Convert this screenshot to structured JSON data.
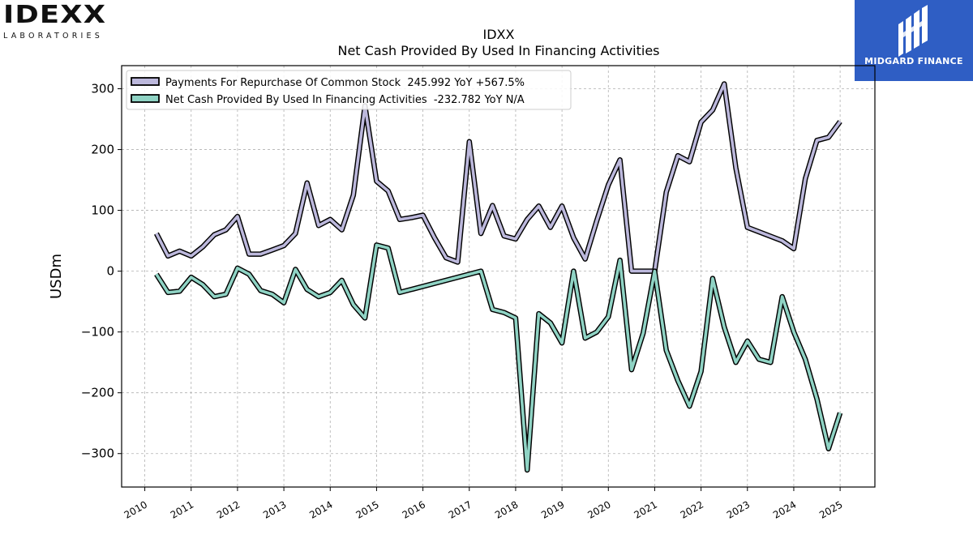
{
  "logos": {
    "left_mark": "IDEXX",
    "left_sub": "LABORATORIES",
    "right_brand": "MIDGARD FINANCE",
    "right_bg": "#2f5ec4"
  },
  "chart_data": {
    "type": "line",
    "title": "IDXX",
    "subtitle": "Net Cash Provided By Used In Financing Activities",
    "xlabel": "",
    "ylabel": "USDm",
    "xlim": [
      2009.5,
      2025.75
    ],
    "ylim": [
      -355,
      338
    ],
    "x_ticks": [
      "2010",
      "2011",
      "2012",
      "2013",
      "2014",
      "2015",
      "2016",
      "2017",
      "2018",
      "2019",
      "2020",
      "2021",
      "2022",
      "2023",
      "2024",
      "2025"
    ],
    "y_ticks": [
      "300",
      "200",
      "100",
      "0",
      "−100",
      "−200",
      "−300"
    ],
    "y_tick_values": [
      300,
      200,
      100,
      0,
      -100,
      -200,
      -300
    ],
    "grid": true,
    "legend_position": "top-left",
    "series": [
      {
        "name": "Payments For Repurchase Of Common Stock  245.992 YoY +567.5%",
        "color": "#bcb8dc",
        "points": [
          [
            2010.25,
            62
          ],
          [
            2010.5,
            25
          ],
          [
            2010.75,
            33
          ],
          [
            2011.0,
            25
          ],
          [
            2011.25,
            40
          ],
          [
            2011.5,
            60
          ],
          [
            2011.75,
            68
          ],
          [
            2012.0,
            90
          ],
          [
            2012.25,
            28
          ],
          [
            2012.5,
            28
          ],
          [
            2012.75,
            35
          ],
          [
            2013.0,
            42
          ],
          [
            2013.25,
            62
          ],
          [
            2013.5,
            145
          ],
          [
            2013.75,
            75
          ],
          [
            2014.0,
            85
          ],
          [
            2014.25,
            68
          ],
          [
            2014.5,
            125
          ],
          [
            2014.75,
            272
          ],
          [
            2015.0,
            148
          ],
          [
            2015.25,
            132
          ],
          [
            2015.5,
            85
          ],
          [
            2015.75,
            88
          ],
          [
            2016.0,
            92
          ],
          [
            2016.25,
            55
          ],
          [
            2016.5,
            22
          ],
          [
            2016.75,
            15
          ],
          [
            2017.0,
            213
          ],
          [
            2017.25,
            62
          ],
          [
            2017.5,
            108
          ],
          [
            2017.75,
            58
          ],
          [
            2018.0,
            53
          ],
          [
            2018.25,
            85
          ],
          [
            2018.5,
            107
          ],
          [
            2018.75,
            72
          ],
          [
            2019.0,
            107
          ],
          [
            2019.25,
            55
          ],
          [
            2019.5,
            20
          ],
          [
            2019.75,
            83
          ],
          [
            2020.0,
            142
          ],
          [
            2020.25,
            183
          ],
          [
            2020.5,
            0
          ],
          [
            2020.75,
            0
          ],
          [
            2021.0,
            0
          ],
          [
            2021.25,
            130
          ],
          [
            2021.5,
            190
          ],
          [
            2021.75,
            180
          ],
          [
            2022.0,
            245
          ],
          [
            2022.25,
            265
          ],
          [
            2022.5,
            308
          ],
          [
            2022.75,
            170
          ],
          [
            2023.0,
            72
          ],
          [
            2023.75,
            50
          ],
          [
            2024.0,
            37
          ],
          [
            2024.25,
            152
          ],
          [
            2024.5,
            215
          ],
          [
            2024.75,
            220
          ],
          [
            2025.0,
            246
          ]
        ]
      },
      {
        "name": "Net Cash Provided By Used In Financing Activities  -232.782 YoY N/A",
        "color": "#8fd3c4",
        "points": [
          [
            2010.25,
            -5
          ],
          [
            2010.5,
            -35
          ],
          [
            2010.75,
            -33
          ],
          [
            2011.0,
            -10
          ],
          [
            2011.25,
            -22
          ],
          [
            2011.5,
            -42
          ],
          [
            2011.75,
            -38
          ],
          [
            2012.0,
            5
          ],
          [
            2012.25,
            -5
          ],
          [
            2012.5,
            -32
          ],
          [
            2012.75,
            -38
          ],
          [
            2013.0,
            -52
          ],
          [
            2013.25,
            3
          ],
          [
            2013.5,
            -30
          ],
          [
            2013.75,
            -42
          ],
          [
            2014.0,
            -35
          ],
          [
            2014.25,
            -15
          ],
          [
            2014.5,
            -55
          ],
          [
            2014.75,
            -77
          ],
          [
            2015.0,
            43
          ],
          [
            2015.25,
            38
          ],
          [
            2015.5,
            -35
          ],
          [
            2017.25,
            0
          ],
          [
            2017.5,
            -63
          ],
          [
            2017.75,
            -68
          ],
          [
            2018.0,
            -77
          ],
          [
            2018.25,
            -327
          ],
          [
            2018.5,
            -70
          ],
          [
            2018.75,
            -85
          ],
          [
            2019.0,
            -118
          ],
          [
            2019.25,
            0
          ],
          [
            2019.5,
            -110
          ],
          [
            2019.75,
            -100
          ],
          [
            2020.0,
            -75
          ],
          [
            2020.25,
            18
          ],
          [
            2020.5,
            -162
          ],
          [
            2020.75,
            -102
          ],
          [
            2021.0,
            0
          ],
          [
            2021.25,
            -130
          ],
          [
            2021.5,
            -180
          ],
          [
            2021.75,
            -222
          ],
          [
            2022.0,
            -165
          ],
          [
            2022.25,
            -12
          ],
          [
            2022.5,
            -92
          ],
          [
            2022.75,
            -150
          ],
          [
            2023.0,
            -115
          ],
          [
            2023.25,
            -145
          ],
          [
            2023.5,
            -150
          ],
          [
            2023.75,
            -42
          ],
          [
            2024.0,
            -100
          ],
          [
            2024.25,
            -145
          ],
          [
            2024.5,
            -210
          ],
          [
            2024.75,
            -292
          ],
          [
            2025.0,
            -233
          ]
        ]
      }
    ]
  }
}
